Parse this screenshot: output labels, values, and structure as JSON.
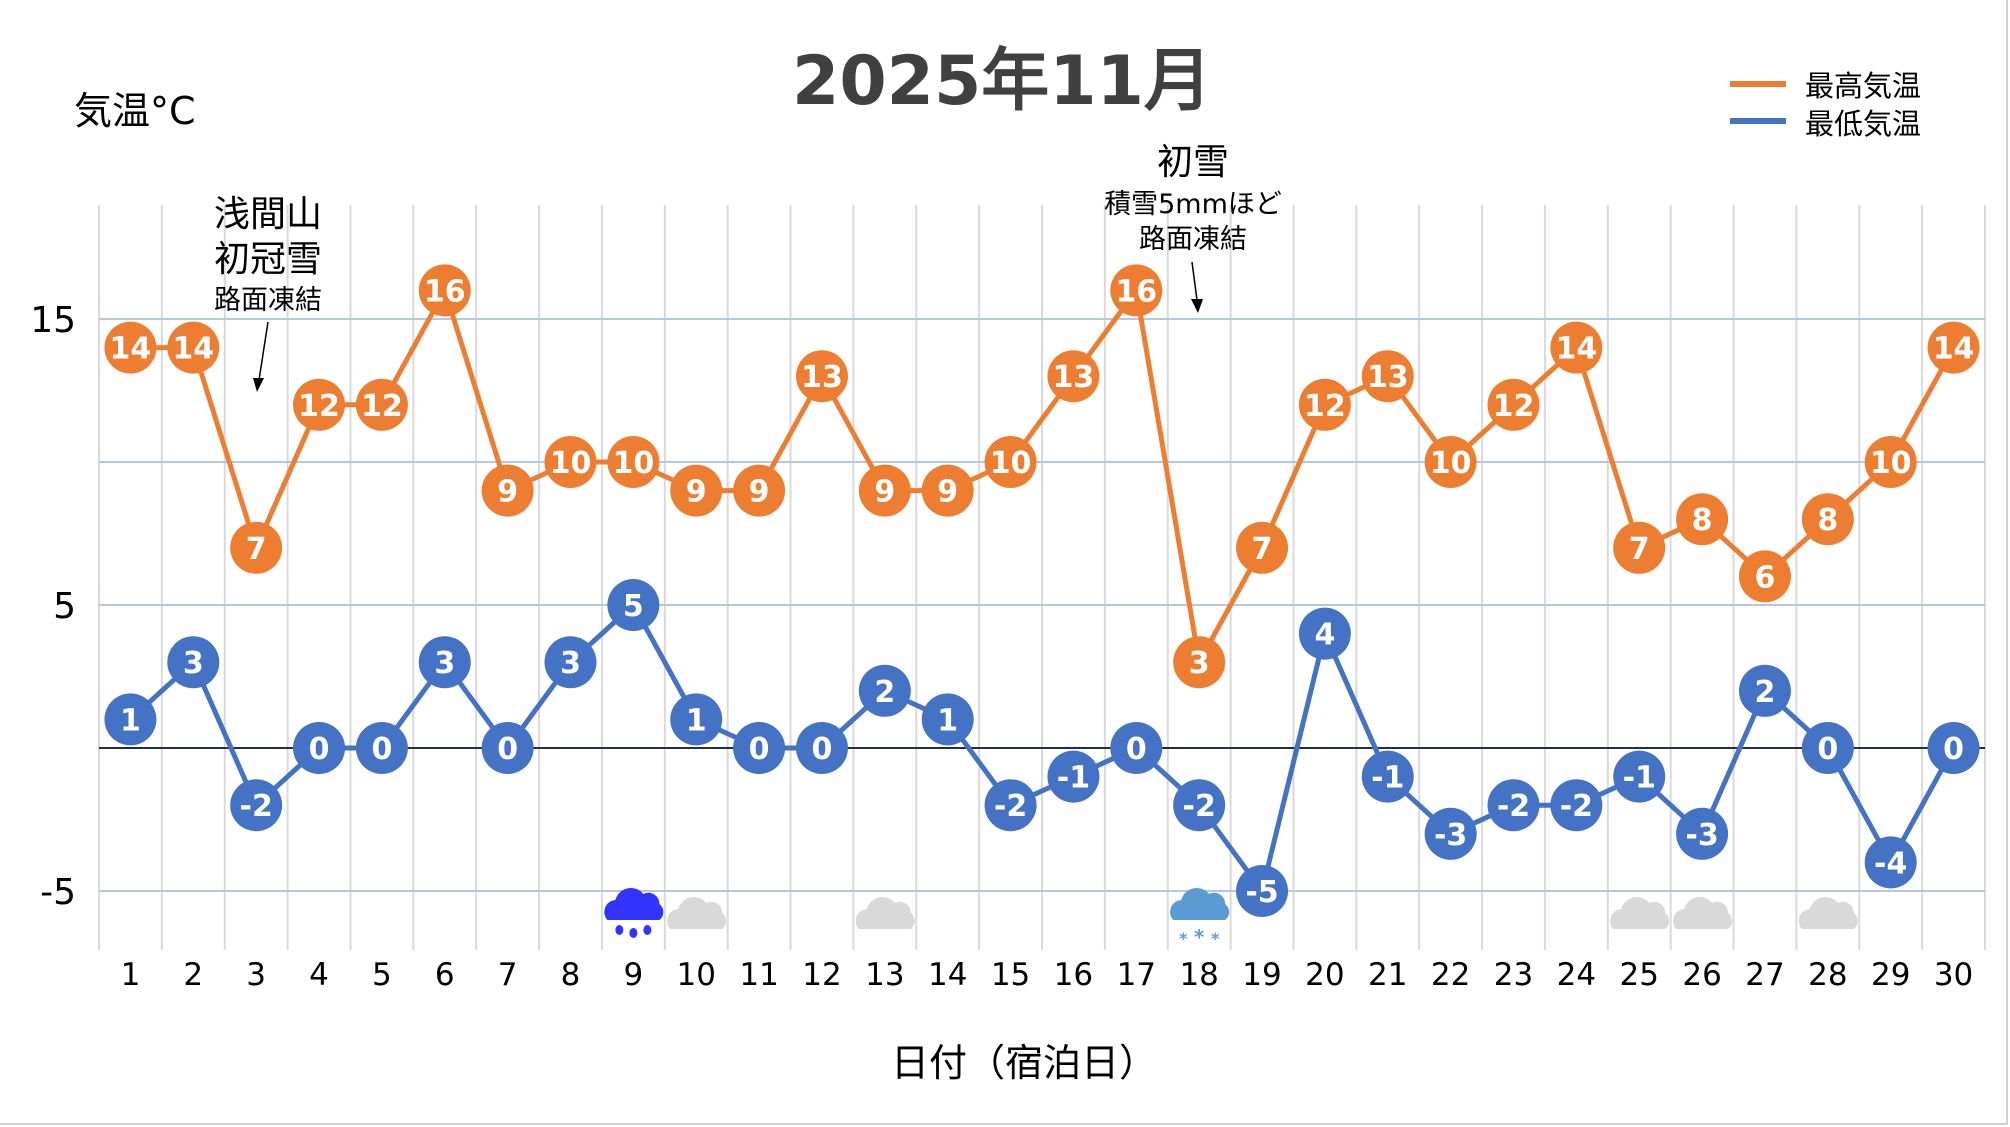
{
  "chart_data": {
    "type": "line",
    "title": "2025年11月",
    "ylabel": "気温°C",
    "xlabel": "日付（宿泊日）",
    "ylim": [
      -7,
      19
    ],
    "yticks": [
      15,
      5,
      -5
    ],
    "gridlines_y": [
      15,
      10,
      5,
      -5
    ],
    "zero_line": 0,
    "grid": true,
    "legend_position": "top-right",
    "categories": [
      "1",
      "2",
      "3",
      "4",
      "5",
      "6",
      "7",
      "8",
      "9",
      "10",
      "11",
      "12",
      "13",
      "14",
      "15",
      "16",
      "17",
      "18",
      "19",
      "20",
      "21",
      "22",
      "23",
      "24",
      "25",
      "26",
      "27",
      "28",
      "29",
      "30"
    ],
    "series": [
      {
        "name": "最高気温",
        "color": "#ed7d31",
        "values": [
          14,
          14,
          7,
          12,
          12,
          16,
          9,
          10,
          10,
          9,
          9,
          13,
          9,
          9,
          10,
          13,
          16,
          3,
          7,
          12,
          13,
          10,
          12,
          14,
          7,
          8,
          6,
          8,
          10,
          14
        ]
      },
      {
        "name": "最低気温",
        "color": "#4472c4",
        "values": [
          1,
          3,
          -2,
          0,
          0,
          3,
          0,
          3,
          5,
          1,
          0,
          0,
          2,
          1,
          -2,
          -1,
          0,
          -2,
          -5,
          4,
          -1,
          -3,
          -2,
          -2,
          -1,
          -3,
          2,
          0,
          -4,
          0
        ]
      }
    ],
    "annotations": [
      {
        "day": 3,
        "lines": [
          "浅間山",
          "初冠雪",
          "路面凍結"
        ],
        "arrow": true
      },
      {
        "day": 18,
        "lines": [
          "初雪",
          "積雪5mmほど",
          "路面凍結"
        ],
        "arrow": true
      }
    ],
    "weather_icons": [
      {
        "day": 9,
        "icon": "rain-cloud-icon",
        "color": "#3333ff"
      },
      {
        "day": 10,
        "icon": "cloud-icon",
        "color": "#d9d9d9"
      },
      {
        "day": 13,
        "icon": "cloud-icon",
        "color": "#d9d9d9"
      },
      {
        "day": 18,
        "icon": "snow-cloud-icon",
        "color": "#5b9bd5"
      },
      {
        "day": 25,
        "icon": "cloud-icon",
        "color": "#d9d9d9"
      },
      {
        "day": 26,
        "icon": "cloud-icon",
        "color": "#d9d9d9"
      },
      {
        "day": 28,
        "icon": "cloud-icon",
        "color": "#d9d9d9"
      }
    ]
  }
}
